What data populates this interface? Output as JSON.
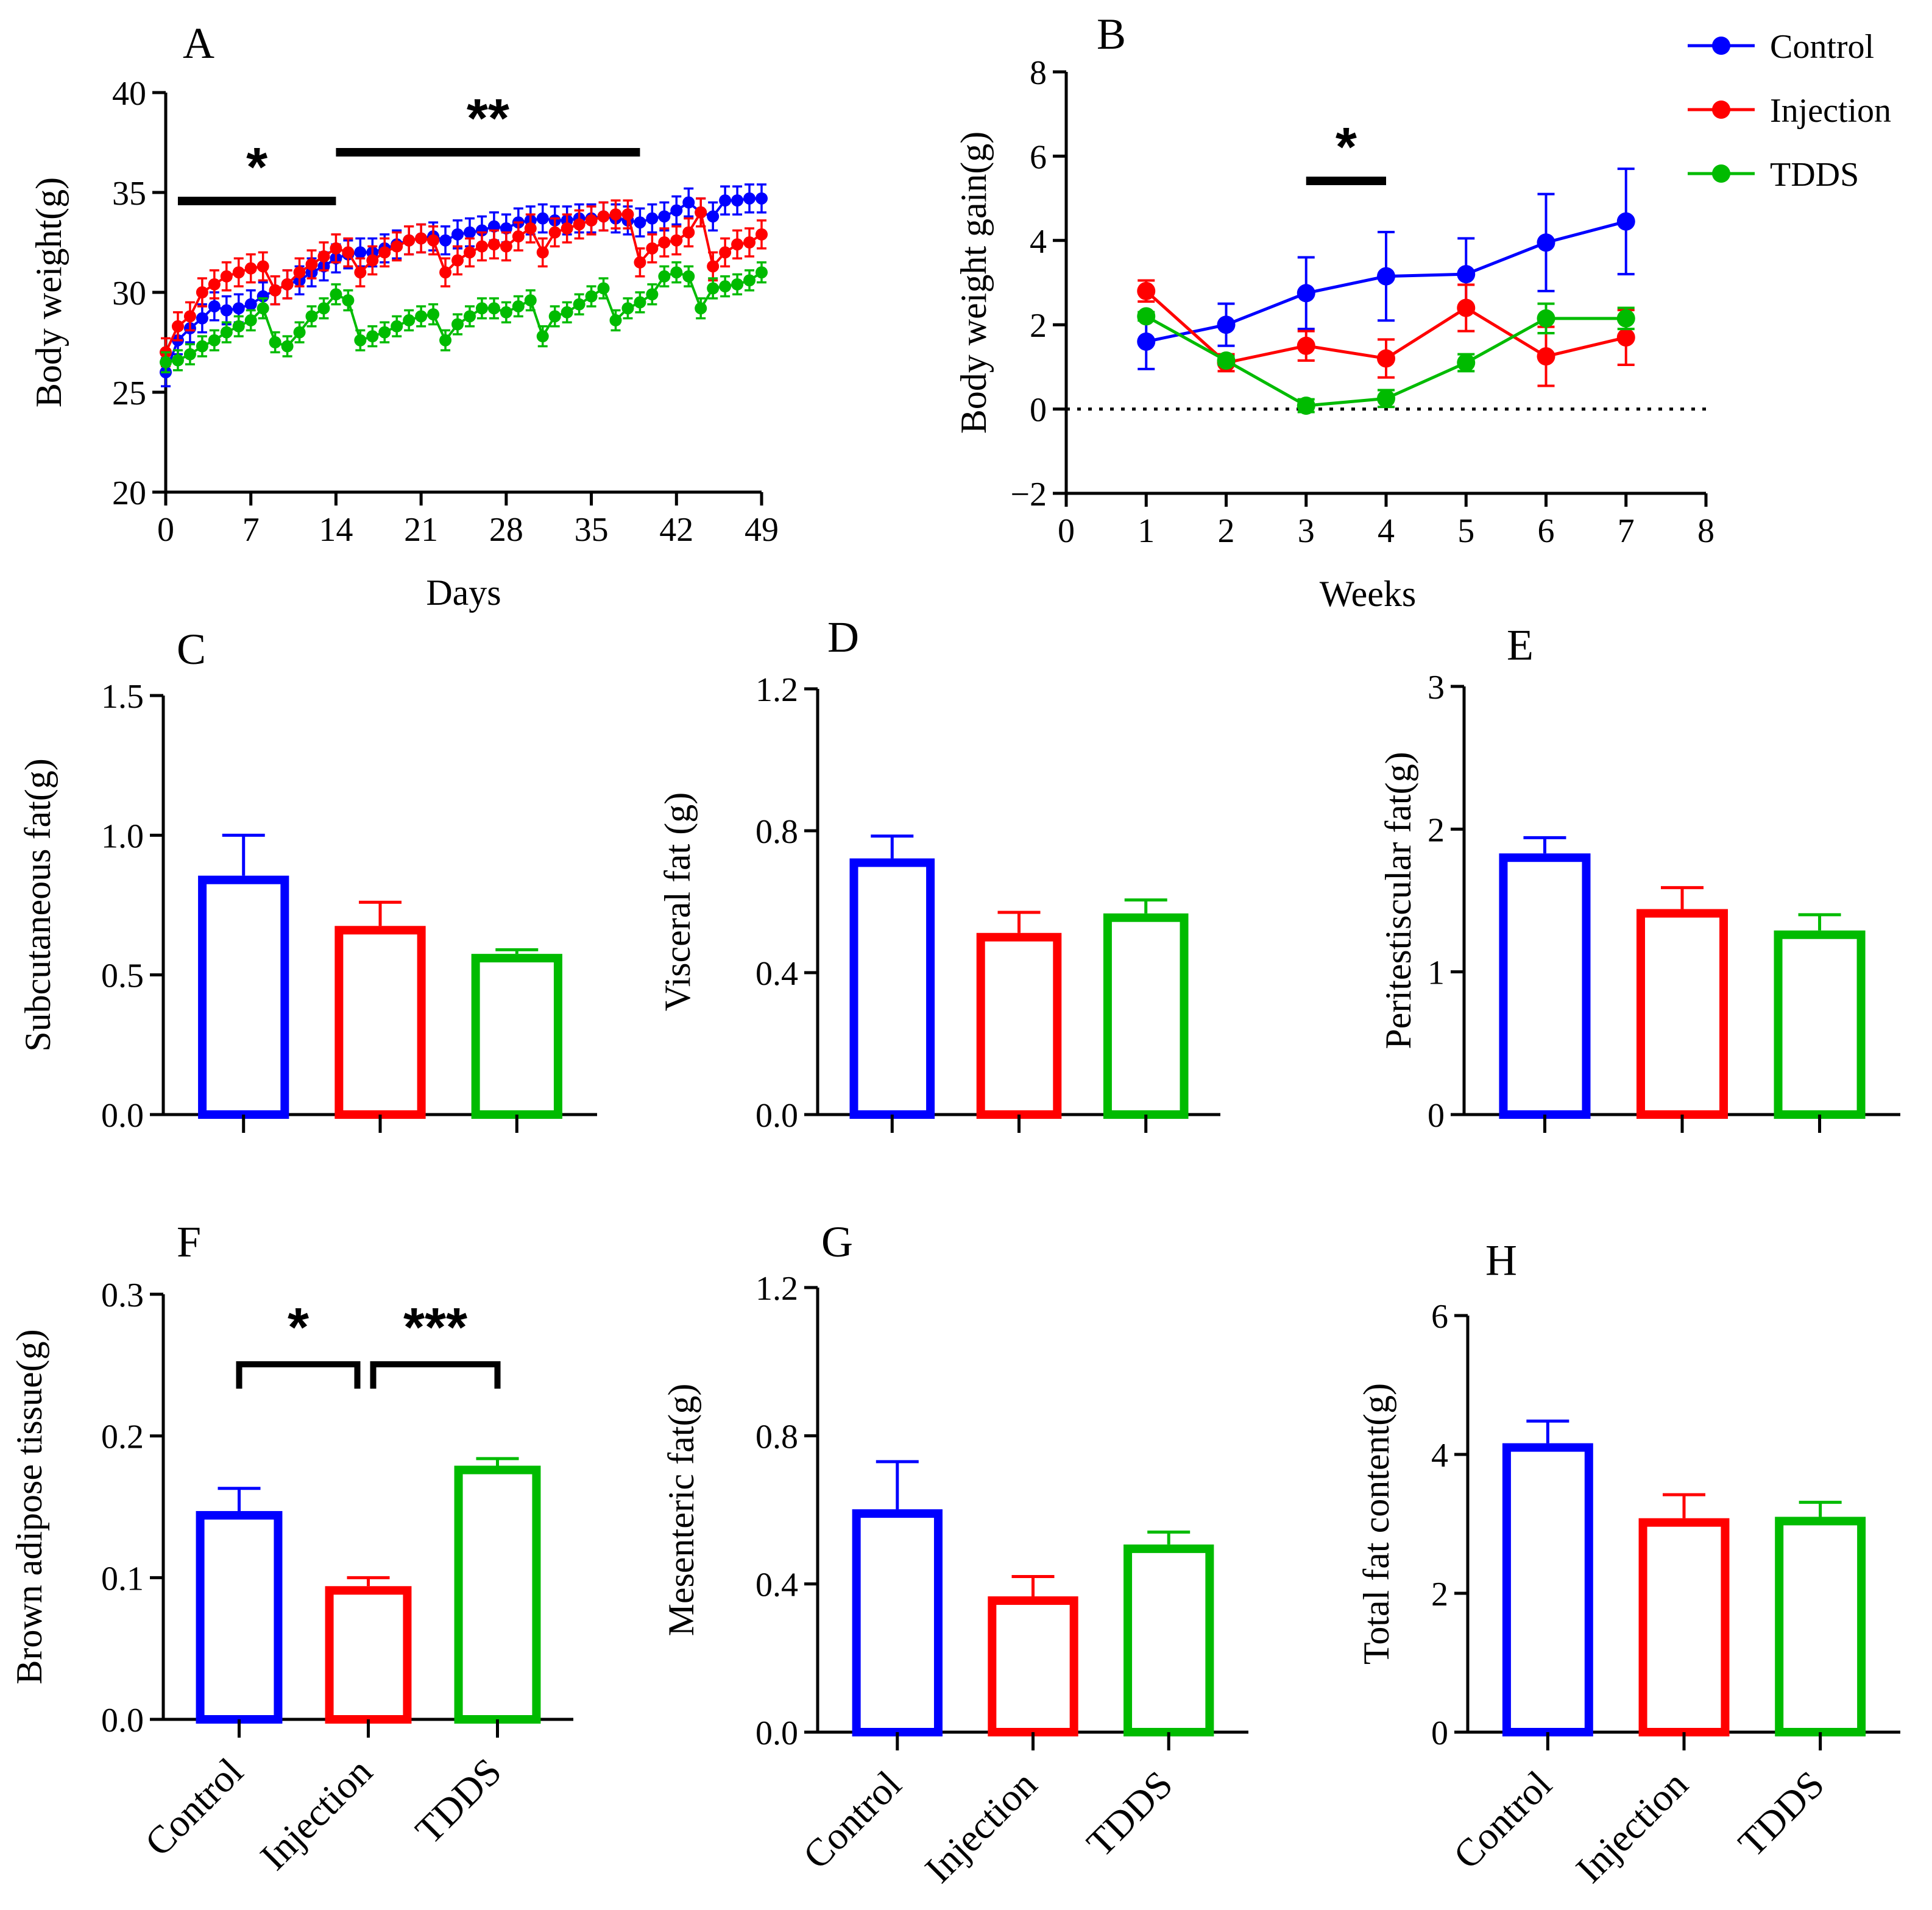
{
  "colors": {
    "Control": "#0000ff",
    "Injection": "#ff0000",
    "TDDS": "#00bb00"
  },
  "legend": {
    "entries": [
      "Control",
      "Injection",
      "TDDS"
    ],
    "placement": "top-right of panel B"
  },
  "chart_data": [
    {
      "id": "A",
      "panel_label": "A",
      "type": "line",
      "xlabel": "Days",
      "ylabel": "Body weight(g)",
      "xlim": [
        0,
        49
      ],
      "ylim": [
        20,
        40
      ],
      "xticks": [
        0,
        7,
        14,
        21,
        28,
        35,
        42,
        49
      ],
      "yticks": [
        20,
        25,
        30,
        35,
        40
      ],
      "significance": [
        {
          "label": "*",
          "from": 1,
          "to": 14
        },
        {
          "label": "**",
          "from": 14,
          "to": 39
        }
      ],
      "x": [
        0,
        1,
        2,
        3,
        4,
        5,
        6,
        7,
        8,
        9,
        10,
        11,
        12,
        13,
        14,
        15,
        16,
        17,
        18,
        19,
        20,
        21,
        22,
        23,
        24,
        25,
        26,
        27,
        28,
        29,
        30,
        31,
        32,
        33,
        34,
        35,
        36,
        37,
        38,
        39,
        40,
        41,
        42,
        43,
        44,
        45,
        46,
        47,
        48,
        49
      ],
      "series": [
        {
          "name": "Control",
          "values": [
            26.0,
            27.6,
            28.2,
            28.7,
            29.3,
            29.1,
            29.2,
            29.4,
            29.8,
            30.1,
            30.4,
            30.6,
            31.0,
            31.3,
            31.7,
            31.9,
            32.0,
            32.0,
            32.2,
            32.4,
            32.6,
            32.7,
            32.8,
            32.6,
            32.9,
            33.0,
            33.1,
            33.3,
            33.2,
            33.5,
            33.6,
            33.7,
            33.6,
            33.6,
            33.7,
            33.7,
            33.8,
            33.7,
            33.6,
            33.5,
            33.7,
            33.8,
            34.1,
            34.5,
            34.0,
            33.8,
            34.6,
            34.6,
            34.7,
            34.7
          ],
          "error": 0.7
        },
        {
          "name": "Injection",
          "values": [
            27.0,
            28.3,
            28.8,
            30.0,
            30.4,
            30.8,
            31.0,
            31.2,
            31.3,
            30.1,
            30.4,
            31.0,
            31.4,
            31.8,
            32.2,
            32.0,
            31.0,
            31.6,
            32.0,
            32.3,
            32.6,
            32.7,
            32.6,
            31.0,
            31.6,
            32.0,
            32.3,
            32.4,
            32.3,
            32.8,
            33.2,
            32.0,
            33.0,
            33.2,
            33.4,
            33.6,
            33.8,
            33.9,
            33.9,
            31.5,
            32.2,
            32.5,
            32.6,
            33.0,
            34.0,
            31.3,
            32.0,
            32.4,
            32.5,
            32.9
          ],
          "error": 0.7
        },
        {
          "name": "TDDS",
          "values": [
            26.5,
            26.6,
            26.9,
            27.3,
            27.6,
            28.0,
            28.3,
            28.6,
            29.2,
            27.5,
            27.3,
            28.0,
            28.8,
            29.2,
            29.9,
            29.6,
            27.6,
            27.8,
            28.0,
            28.3,
            28.6,
            28.8,
            28.9,
            27.6,
            28.4,
            28.8,
            29.2,
            29.2,
            29.0,
            29.3,
            29.6,
            27.8,
            28.8,
            29.0,
            29.4,
            29.8,
            30.2,
            28.6,
            29.2,
            29.5,
            29.9,
            30.8,
            31.0,
            30.8,
            29.2,
            30.2,
            30.3,
            30.4,
            30.6,
            31.0
          ],
          "error": 0.5
        }
      ]
    },
    {
      "id": "B",
      "panel_label": "B",
      "type": "line",
      "xlabel": "Weeks",
      "ylabel": "Body weight gain(g)",
      "xlim": [
        0,
        8
      ],
      "ylim": [
        -2,
        8
      ],
      "xticks": [
        0,
        1,
        2,
        3,
        4,
        5,
        6,
        7,
        8
      ],
      "yticks": [
        -2,
        0,
        2,
        4,
        6,
        8
      ],
      "ytick_labels": [
        "−2",
        "0",
        "2",
        "4",
        "6",
        "8"
      ],
      "reference_line": 0,
      "significance": [
        {
          "label": "*",
          "from": 3,
          "to": 4
        }
      ],
      "x": [
        1,
        2,
        3,
        4,
        5,
        6,
        7
      ],
      "series": [
        {
          "name": "Control",
          "values": [
            1.6,
            2.0,
            2.75,
            3.15,
            3.2,
            3.95,
            4.45
          ],
          "error": [
            0.65,
            0.5,
            0.85,
            1.05,
            0.85,
            1.15,
            1.25
          ]
        },
        {
          "name": "Injection",
          "values": [
            2.8,
            1.1,
            1.5,
            1.2,
            2.4,
            1.25,
            1.7
          ],
          "error": [
            0.25,
            0.2,
            0.35,
            0.45,
            0.55,
            0.7,
            0.65
          ]
        },
        {
          "name": "TDDS",
          "values": [
            2.2,
            1.15,
            0.08,
            0.25,
            1.1,
            2.15,
            2.15
          ],
          "error": [
            0.1,
            0.1,
            0.15,
            0.2,
            0.2,
            0.35,
            0.25
          ]
        }
      ]
    },
    {
      "id": "C",
      "panel_label": "C",
      "type": "bar",
      "ylabel": "Subcutaneous fat(g)",
      "ylim": [
        0,
        1.5
      ],
      "yticks": [
        0,
        0.5,
        1,
        1.5
      ],
      "ytick_labels": [
        "0.0",
        "0.5",
        "1.0",
        "1.5"
      ],
      "categories": [
        "Control",
        "Injection",
        "TDDS"
      ],
      "show_category_labels": false,
      "values": [
        0.84,
        0.66,
        0.56
      ],
      "errors": [
        0.16,
        0.1,
        0.03
      ],
      "brackets": []
    },
    {
      "id": "D",
      "panel_label": "D",
      "type": "bar",
      "ylabel": "Visceral fat (g)",
      "ylim": [
        0,
        1.2
      ],
      "yticks": [
        0,
        0.4,
        0.8,
        1.2
      ],
      "ytick_labels": [
        "0.0",
        "0.4",
        "0.8",
        "1.2"
      ],
      "categories": [
        "Control",
        "Injection",
        "TDDS"
      ],
      "show_category_labels": false,
      "values": [
        0.71,
        0.5,
        0.555
      ],
      "errors": [
        0.075,
        0.07,
        0.05
      ],
      "brackets": []
    },
    {
      "id": "E",
      "panel_label": "E",
      "type": "bar",
      "ylabel": "Peritestiscular fat(g)",
      "ylim": [
        0,
        3
      ],
      "yticks": [
        0,
        1,
        2,
        3
      ],
      "ytick_labels": [
        "0",
        "1",
        "2",
        "3"
      ],
      "categories": [
        "Control",
        "Injection",
        "TDDS"
      ],
      "show_category_labels": false,
      "values": [
        1.8,
        1.41,
        1.26
      ],
      "errors": [
        0.14,
        0.18,
        0.14
      ],
      "brackets": []
    },
    {
      "id": "F",
      "panel_label": "F",
      "type": "bar",
      "ylabel": "Brown adipose tissue(g)",
      "ylim": [
        0,
        0.3
      ],
      "yticks": [
        0,
        0.1,
        0.2,
        0.3
      ],
      "ytick_labels": [
        "0.0",
        "0.1",
        "0.2",
        "0.3"
      ],
      "categories": [
        "Control",
        "Injection",
        "TDDS"
      ],
      "show_category_labels": true,
      "values": [
        0.144,
        0.091,
        0.176
      ],
      "errors": [
        0.019,
        0.009,
        0.008
      ],
      "brackets": [
        {
          "from": 0,
          "to": 1,
          "label": "*"
        },
        {
          "from": 1,
          "to": 2,
          "label": "***"
        }
      ]
    },
    {
      "id": "G",
      "panel_label": "G",
      "type": "bar",
      "ylabel": "Mesenteric fat(g)",
      "ylim": [
        0,
        1.2
      ],
      "yticks": [
        0,
        0.4,
        0.8,
        1.2
      ],
      "ytick_labels": [
        "0.0",
        "0.4",
        "0.8",
        "1.2"
      ],
      "categories": [
        "Control",
        "Injection",
        "TDDS"
      ],
      "show_category_labels": true,
      "values": [
        0.59,
        0.355,
        0.495
      ],
      "errors": [
        0.14,
        0.065,
        0.045
      ],
      "brackets": []
    },
    {
      "id": "H",
      "panel_label": "H",
      "type": "bar",
      "ylabel": "Total fat content(g)",
      "ylim": [
        0,
        6
      ],
      "yticks": [
        0,
        2,
        4,
        6
      ],
      "ytick_labels": [
        "0",
        "2",
        "4",
        "6"
      ],
      "categories": [
        "Control",
        "Injection",
        "TDDS"
      ],
      "show_category_labels": true,
      "values": [
        4.1,
        3.02,
        3.04
      ],
      "errors": [
        0.38,
        0.4,
        0.27
      ],
      "brackets": []
    }
  ]
}
